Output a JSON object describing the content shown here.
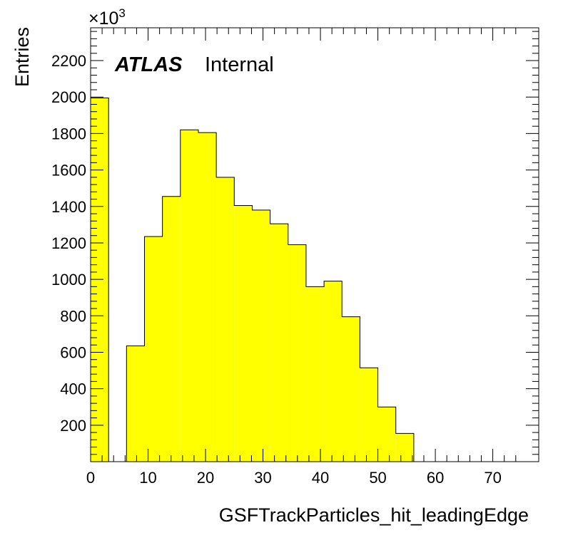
{
  "chart_data": {
    "type": "bar",
    "title": "",
    "xlabel": "GSFTrackParticles_hit_leadingEdge",
    "ylabel": "Entries",
    "y_multiplier": "×10",
    "y_multiplier_exponent": "3",
    "label_experiment": "ATLAS",
    "label_status": "Internal",
    "bar_color": "#ffff00",
    "xlim": [
      0,
      78
    ],
    "ylim": [
      0,
      2380
    ],
    "x_ticks": [
      0,
      10,
      20,
      30,
      40,
      50,
      60,
      70
    ],
    "y_ticks": [
      200,
      400,
      600,
      800,
      1000,
      1200,
      1400,
      1600,
      1800,
      2000,
      2200
    ],
    "grid": false,
    "bin_edges": [
      0,
      3.125,
      6.25,
      9.375,
      12.5,
      15.625,
      18.75,
      21.875,
      25,
      28.125,
      31.25,
      34.375,
      37.5,
      40.625,
      43.75,
      46.875,
      50,
      53.125,
      56.25,
      59.375,
      62.5,
      65.625,
      68.75,
      71.875,
      75,
      78
    ],
    "values": [
      1995,
      0,
      635,
      1235,
      1455,
      1820,
      1805,
      1560,
      1405,
      1380,
      1305,
      1190,
      960,
      990,
      795,
      515,
      300,
      155,
      0,
      0,
      0,
      0,
      0,
      0,
      0
    ]
  }
}
